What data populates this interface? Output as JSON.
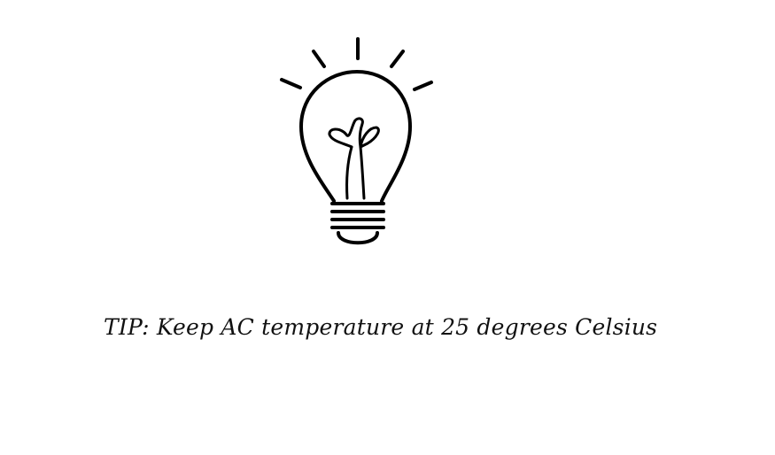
{
  "tip": {
    "text": "TIP: Keep AC temperature at 25 degrees Celsius"
  },
  "illustration": {
    "icon": "lightbulb-icon",
    "stroke_color": "#000000"
  }
}
